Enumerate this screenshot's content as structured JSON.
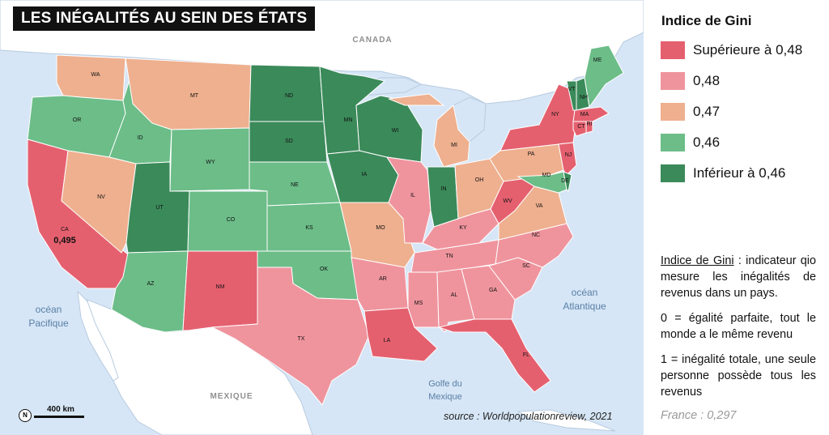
{
  "title": "LES INÉGALITÉS AU SEIN DES ÉTATS",
  "legend": {
    "title": "Indice de Gini",
    "items": [
      {
        "label": "Supérieure à 0,48",
        "color": "#e5606f"
      },
      {
        "label": "0,48",
        "color": "#ef949d"
      },
      {
        "label": "0,47",
        "color": "#eeb08f"
      },
      {
        "label": "0,46",
        "color": "#6cbd88"
      },
      {
        "label": "Inférieur à 0,46",
        "color": "#3b8a5a"
      }
    ]
  },
  "definition": {
    "term": "Indice de Gini",
    "text": " : indicateur qio mesure les inégalités de revenus dans un pays.",
    "zero": "0 = égalité parfaite, tout le monde a le même revenu",
    "one": "1 = inégalité totale, une seule personne possède tous les revenus"
  },
  "france": "France : 0,297",
  "source": "source : Worldpopulationreview, 2021",
  "scale": "400 km",
  "north": "N",
  "places": {
    "canada": "CANADA",
    "mexique": "MEXIQUE",
    "pacifique_1": "océan",
    "pacifique_2": "Pacifique",
    "atlantique_1": "océan",
    "atlantique_2": "Atlantique",
    "golfe_1": "Golfe du",
    "golfe_2": "Mexique"
  },
  "ca_value": "0,495",
  "states": [
    {
      "code": "WA",
      "cat": 2
    },
    {
      "code": "OR",
      "cat": 3
    },
    {
      "code": "CA",
      "cat": 0
    },
    {
      "code": "NV",
      "cat": 2
    },
    {
      "code": "ID",
      "cat": 3
    },
    {
      "code": "MT",
      "cat": 2
    },
    {
      "code": "WY",
      "cat": 3
    },
    {
      "code": "UT",
      "cat": 4
    },
    {
      "code": "AZ",
      "cat": 3
    },
    {
      "code": "CO",
      "cat": 3
    },
    {
      "code": "NM",
      "cat": 0
    },
    {
      "code": "ND",
      "cat": 4
    },
    {
      "code": "SD",
      "cat": 4
    },
    {
      "code": "NE",
      "cat": 3
    },
    {
      "code": "KS",
      "cat": 3
    },
    {
      "code": "OK",
      "cat": 3
    },
    {
      "code": "TX",
      "cat": 1
    },
    {
      "code": "MN",
      "cat": 4
    },
    {
      "code": "IA",
      "cat": 4
    },
    {
      "code": "MO",
      "cat": 2
    },
    {
      "code": "AR",
      "cat": 1
    },
    {
      "code": "LA",
      "cat": 0
    },
    {
      "code": "WI",
      "cat": 4
    },
    {
      "code": "IL",
      "cat": 1
    },
    {
      "code": "MI",
      "cat": 2
    },
    {
      "code": "IN",
      "cat": 4
    },
    {
      "code": "OH",
      "cat": 2
    },
    {
      "code": "KY",
      "cat": 1
    },
    {
      "code": "TN",
      "cat": 1
    },
    {
      "code": "MS",
      "cat": 1
    },
    {
      "code": "AL",
      "cat": 1
    },
    {
      "code": "GA",
      "cat": 1
    },
    {
      "code": "FL",
      "cat": 0
    },
    {
      "code": "SC",
      "cat": 1
    },
    {
      "code": "NC",
      "cat": 1
    },
    {
      "code": "VA",
      "cat": 2
    },
    {
      "code": "WV",
      "cat": 0
    },
    {
      "code": "PA",
      "cat": 2
    },
    {
      "code": "NY",
      "cat": 0
    },
    {
      "code": "NJ",
      "cat": 0
    },
    {
      "code": "MD",
      "cat": 3
    },
    {
      "code": "DE",
      "cat": 4
    },
    {
      "code": "CT",
      "cat": 0
    },
    {
      "code": "RI",
      "cat": 0
    },
    {
      "code": "MA",
      "cat": 0
    },
    {
      "code": "VT",
      "cat": 4
    },
    {
      "code": "NH",
      "cat": 4
    },
    {
      "code": "ME",
      "cat": 3
    }
  ]
}
